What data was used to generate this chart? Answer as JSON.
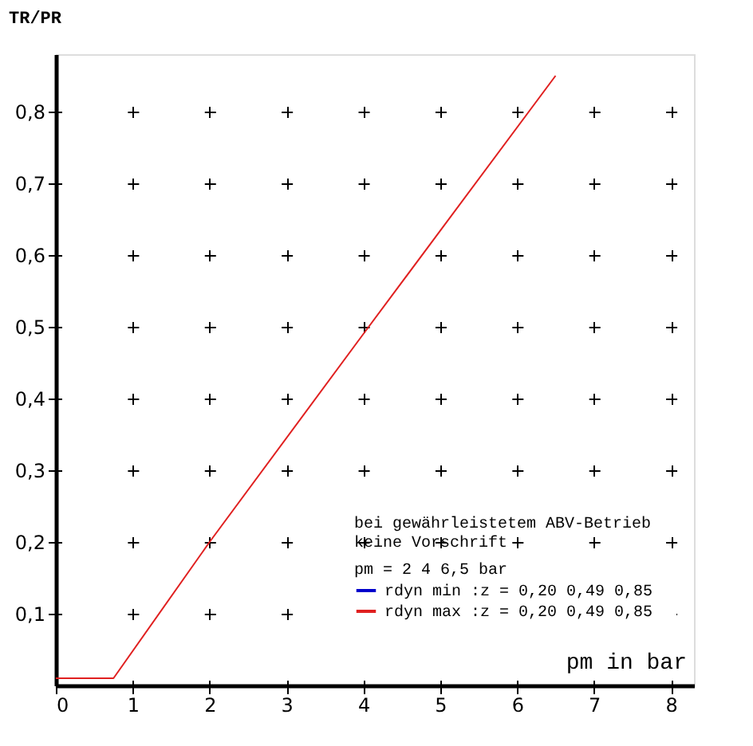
{
  "chart_data": {
    "type": "line",
    "xlabel": "pm in bar",
    "ylabel": "TR/PR",
    "xlim": [
      0,
      8.3
    ],
    "ylim": [
      0,
      0.88
    ],
    "xticks": [
      0,
      1,
      2,
      3,
      4,
      5,
      6,
      7,
      8
    ],
    "yticks": [
      {
        "value": 0.1,
        "label": "0,1"
      },
      {
        "value": 0.2,
        "label": "0,2"
      },
      {
        "value": 0.3,
        "label": "0,3"
      },
      {
        "value": 0.4,
        "label": "0,4"
      },
      {
        "value": 0.5,
        "label": "0,5"
      },
      {
        "value": 0.6,
        "label": "0,6"
      },
      {
        "value": 0.7,
        "label": "0,7"
      },
      {
        "value": 0.8,
        "label": "0,8"
      }
    ],
    "x": [
      0,
      0.75,
      2,
      4,
      6.5
    ],
    "series": [
      {
        "name": "rdyn min :z = 0,20  0,49  0,85",
        "color": "#0000cc",
        "values": [
          null,
          null,
          null,
          null,
          null
        ]
      },
      {
        "name": "rdyn max :z = 0,20  0,49  0,85",
        "color": "#e02020",
        "values": [
          0.01,
          0.01,
          0.2,
          0.49,
          0.85
        ]
      }
    ],
    "grid": true,
    "legend": "bottom right",
    "marker": "none",
    "line_style": "solid",
    "legend_title": "pm =     2      4    6,5 bar",
    "annotations": [
      "bei gewährleistetem ABV-Betrieb",
      "keine Vorschrift"
    ]
  }
}
